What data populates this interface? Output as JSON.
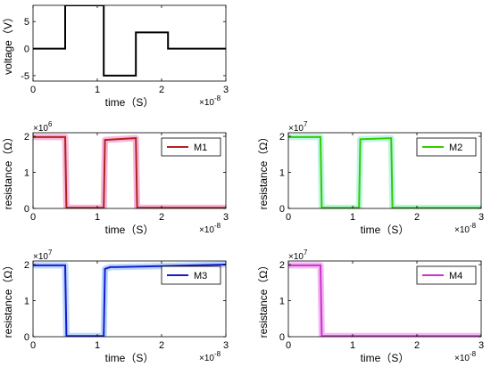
{
  "chart_data": [
    {
      "id": "voltage",
      "type": "line",
      "title": "",
      "xlabel": "time（S）",
      "ylabel": "voltage（V）",
      "x_exponent_label": "×10",
      "x_exponent_power": "-8",
      "y_exponent_label": "",
      "y_exponent_power": "",
      "xlim": [
        0,
        3
      ],
      "ylim": [
        -6,
        8
      ],
      "xticks": [
        0,
        1,
        2,
        3
      ],
      "yticks": [
        -5,
        0,
        5
      ],
      "xtick_labels": [
        "0",
        "1",
        "2",
        "3"
      ],
      "ytick_labels": [
        "-5",
        "0",
        "5"
      ],
      "grid": false,
      "series": [
        {
          "color": "#000000",
          "x": [
            0,
            0.5,
            0.5,
            1.1,
            1.1,
            1.6,
            1.6,
            2.1,
            2.1,
            3
          ],
          "y": [
            0,
            0,
            8,
            8,
            -5,
            -5,
            3,
            3,
            0,
            0
          ]
        }
      ]
    },
    {
      "id": "m1",
      "type": "line",
      "title": "",
      "xlabel": "time（S）",
      "ylabel": "resistance（Ω）",
      "x_exponent_label": "×10",
      "x_exponent_power": "-8",
      "y_exponent_label": "×10",
      "y_exponent_power": "6",
      "xlim": [
        0,
        3
      ],
      "ylim": [
        0,
        2.1
      ],
      "xticks": [
        0,
        1,
        2,
        3
      ],
      "yticks": [
        0,
        1,
        2
      ],
      "xtick_labels": [
        "0",
        "1",
        "2",
        "3"
      ],
      "ytick_labels": [
        "0",
        "1",
        "2"
      ],
      "grid": false,
      "legend": {
        "placement": "top-right",
        "entries": [
          "M1"
        ]
      },
      "series": [
        {
          "name": "M1",
          "color": "#b22222",
          "glow": "#f8b8dc",
          "x": [
            0,
            0.5,
            0.52,
            1.1,
            1.12,
            1.6,
            1.62,
            3
          ],
          "y": [
            1.98,
            1.98,
            0.02,
            0.02,
            1.9,
            1.95,
            0.02,
            0.02
          ]
        }
      ]
    },
    {
      "id": "m2",
      "type": "line",
      "title": "",
      "xlabel": "time（S）",
      "ylabel": "resistance（Ω）",
      "x_exponent_label": "×10",
      "x_exponent_power": "-8",
      "y_exponent_label": "×10",
      "y_exponent_power": "7",
      "xlim": [
        0,
        3
      ],
      "ylim": [
        0,
        2.1
      ],
      "xticks": [
        0,
        1,
        2,
        3
      ],
      "yticks": [
        0,
        1,
        2
      ],
      "xtick_labels": [
        "0",
        "1",
        "2",
        "3"
      ],
      "ytick_labels": [
        "0",
        "1",
        "2"
      ],
      "grid": false,
      "legend": {
        "placement": "top-right",
        "entries": [
          "M2"
        ]
      },
      "series": [
        {
          "name": "M2",
          "color": "#33cc00",
          "glow": "#bff5e8",
          "x": [
            0,
            0.5,
            0.52,
            1.1,
            1.12,
            1.6,
            1.62,
            3
          ],
          "y": [
            1.98,
            1.98,
            0.02,
            0.02,
            1.92,
            1.95,
            0.02,
            0.02
          ]
        }
      ]
    },
    {
      "id": "m3",
      "type": "line",
      "title": "",
      "xlabel": "time（S）",
      "ylabel": "resistance（Ω）",
      "x_exponent_label": "×10",
      "x_exponent_power": "-8",
      "y_exponent_label": "×10",
      "y_exponent_power": "7",
      "xlim": [
        0,
        3
      ],
      "ylim": [
        0,
        2.1
      ],
      "xticks": [
        0,
        1,
        2,
        3
      ],
      "yticks": [
        0,
        1,
        2
      ],
      "xtick_labels": [
        "0",
        "1",
        "2",
        "3"
      ],
      "ytick_labels": [
        "0",
        "1",
        "2"
      ],
      "grid": false,
      "legend": {
        "placement": "top-right",
        "entries": [
          "M3"
        ]
      },
      "series": [
        {
          "name": "M3",
          "color": "#1a1acc",
          "glow": "#b8d8ff",
          "x": [
            0,
            0.5,
            0.52,
            1.1,
            1.12,
            1.2,
            2,
            3
          ],
          "y": [
            1.98,
            1.98,
            0.02,
            0.02,
            1.88,
            1.93,
            1.96,
            2.0
          ]
        }
      ]
    },
    {
      "id": "m4",
      "type": "line",
      "title": "",
      "xlabel": "time（S）",
      "ylabel": "resistance（Ω）",
      "x_exponent_label": "×10",
      "x_exponent_power": "-8",
      "y_exponent_label": "×10",
      "y_exponent_power": "7",
      "xlim": [
        0,
        3
      ],
      "ylim": [
        0,
        2.1
      ],
      "xticks": [
        0,
        1,
        2,
        3
      ],
      "yticks": [
        0,
        1,
        2
      ],
      "xtick_labels": [
        "0",
        "1",
        "2",
        "3"
      ],
      "ytick_labels": [
        "0",
        "1",
        "2"
      ],
      "grid": false,
      "legend": {
        "placement": "top-right",
        "entries": [
          "M4"
        ]
      },
      "series": [
        {
          "name": "M4",
          "color": "#cc33cc",
          "glow": "#f4b8f4",
          "x": [
            0,
            0.5,
            0.52,
            3
          ],
          "y": [
            1.98,
            1.98,
            0.02,
            0.02
          ]
        }
      ]
    }
  ]
}
